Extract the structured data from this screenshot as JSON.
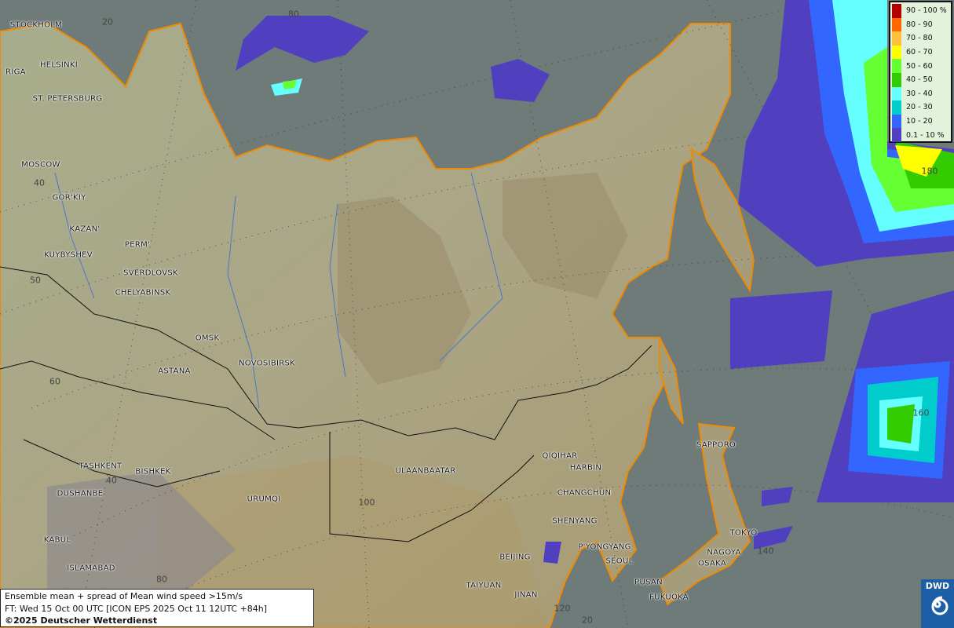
{
  "legend": {
    "items": [
      {
        "label": "90 - 100 %",
        "color": "#b30000"
      },
      {
        "label": "80 - 90",
        "color": "#ff6600"
      },
      {
        "label": "70 - 80",
        "color": "#ffc040"
      },
      {
        "label": "60 - 70",
        "color": "#ffff00"
      },
      {
        "label": "50 - 60",
        "color": "#66ff33"
      },
      {
        "label": "40 - 50",
        "color": "#33cc00"
      },
      {
        "label": "30 - 40",
        "color": "#66ffff"
      },
      {
        "label": "20 - 30",
        "color": "#00cccc"
      },
      {
        "label": "10 - 20",
        "color": "#3366ff"
      },
      {
        "label": "0.1 - 10 %",
        "color": "#5040c0"
      }
    ]
  },
  "info": {
    "line1": "Ensemble mean + spread of Mean wind speed >15m/s",
    "line2": "FT: Wed 15 Oct 00 UTC [ICON EPS 2025 Oct 11 12UTC +84h]",
    "line3": "©2025 Deutscher Wetterdienst"
  },
  "logo": {
    "text": "DWD"
  },
  "cities": [
    "STOCKHOLM",
    "HELSINKI",
    "RIGA",
    "ST. PETERSBURG",
    "MOSCOW",
    "GOR'KIY",
    "KAZAN'",
    "PERM'",
    "KUYBYSHEV",
    "SVERDLOVSK",
    "CHELYABINSK",
    "OMSK",
    "ASTANA",
    "NOVOSIBIRSK",
    "TASHKENT",
    "BISHKEK",
    "DUSHANBE",
    "KABUL",
    "ISLAMABAD",
    "URUMQI",
    "ULAANBAATAR",
    "BEIJING",
    "TAIYUAN",
    "JINAN",
    "QIQIHAR",
    "HARBIN",
    "CHANGCHUN",
    "SHENYANG",
    "P'YONGYANG",
    "SEOUL",
    "PUSAN",
    "FUKUOKA",
    "OSAKA",
    "NAGOYA",
    "TOKYO",
    "SAPPORO"
  ],
  "grid_labels": [
    "20",
    "80",
    "40",
    "50",
    "60",
    "40",
    "80",
    "100",
    "120",
    "140",
    "160",
    "180",
    "20"
  ]
}
